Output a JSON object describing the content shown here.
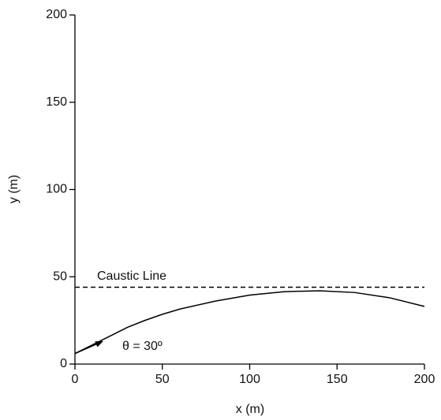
{
  "chart_data": {
    "type": "line",
    "x_label": "x (m)",
    "y_label": "y (m)",
    "xlim": [
      0,
      200
    ],
    "ylim": [
      0,
      200
    ],
    "xticks": [
      0,
      50,
      100,
      150,
      200
    ],
    "yticks": [
      0,
      50,
      100,
      150,
      200
    ],
    "series": [
      {
        "name": "Caustic Line",
        "color": "#000000",
        "style": "dashed",
        "x": [
          0,
          200
        ],
        "values": [
          44,
          44
        ]
      },
      {
        "color": "#000000",
        "style": "solid",
        "x": [
          0,
          10,
          20,
          30,
          40,
          50,
          60,
          80,
          100,
          120,
          140,
          160,
          180,
          200
        ],
        "values": [
          6,
          11,
          16,
          21,
          25,
          28.5,
          31.5,
          36,
          39.5,
          41.5,
          42,
          41,
          38,
          33
        ]
      }
    ],
    "annotations": [
      "θ = 30º"
    ]
  }
}
